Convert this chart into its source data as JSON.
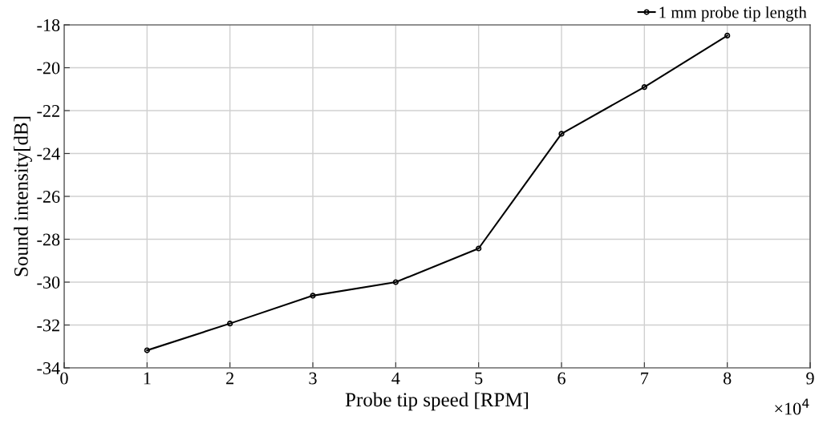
{
  "chart_data": {
    "type": "line",
    "xlabel": "Probe tip speed [RPM]",
    "ylabel": "Sound intensity[dB]",
    "x": [
      1,
      2,
      3,
      4,
      5,
      6,
      7,
      8
    ],
    "series": [
      {
        "name": "1 mm probe tip length",
        "color": "#000000",
        "values": [
          -33.18,
          -31.93,
          -30.63,
          -30.0,
          -28.43,
          -23.08,
          -20.9,
          -18.5
        ]
      }
    ],
    "xlim": [
      0,
      9
    ],
    "xticks": [
      0,
      1,
      2,
      3,
      4,
      5,
      6,
      7,
      8,
      9
    ],
    "ylim": [
      -34,
      -18
    ],
    "yticks": [
      -34,
      -32,
      -30,
      -28,
      -26,
      -24,
      -22,
      -20,
      -18
    ],
    "annotations": [
      "×10$^{4}$"
    ],
    "grid": true,
    "legend": "top right",
    "marker": "circle",
    "line_style": "solid"
  }
}
